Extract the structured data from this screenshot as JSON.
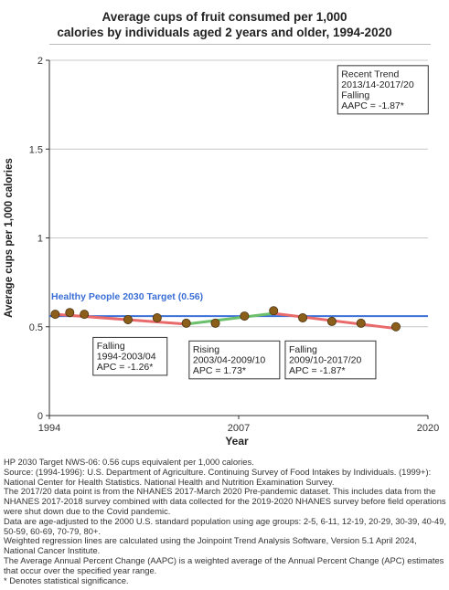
{
  "chart_data": {
    "type": "line",
    "title": "Average cups of fruit consumed per 1,000 calories by individuals aged 2 years and older, 1994-2020",
    "title_lines": [
      "Average cups of fruit consumed per 1,000",
      "calories by individuals aged 2 years and older, 1994-2020"
    ],
    "xlabel": "Year",
    "ylabel": "Average cups per 1,000 calories",
    "xlim": [
      1994,
      2020
    ],
    "ylim": [
      0,
      2
    ],
    "x_ticks": [
      1994,
      2007,
      2020
    ],
    "y_ticks": [
      0,
      0.5,
      1,
      1.5,
      2
    ],
    "y_tick_labels": [
      "0",
      "0.5",
      "1",
      "1.5",
      "2"
    ],
    "grid": true,
    "target": {
      "label": "Healthy People 2030 Target (0.56)",
      "value": 0.56,
      "color": "#3b6fd6"
    },
    "observed_points": [
      {
        "x": 1994.4,
        "y": 0.57
      },
      {
        "x": 1995.4,
        "y": 0.58
      },
      {
        "x": 1996.4,
        "y": 0.57
      },
      {
        "x": 1999.4,
        "y": 0.54
      },
      {
        "x": 2001.4,
        "y": 0.55
      },
      {
        "x": 2003.4,
        "y": 0.52
      },
      {
        "x": 2005.4,
        "y": 0.52
      },
      {
        "x": 2007.4,
        "y": 0.56
      },
      {
        "x": 2009.4,
        "y": 0.59
      },
      {
        "x": 2011.4,
        "y": 0.55
      },
      {
        "x": 2013.4,
        "y": 0.53
      },
      {
        "x": 2015.4,
        "y": 0.52
      },
      {
        "x": 2017.8,
        "y": 0.5
      }
    ],
    "point_color": "#8b5e1a",
    "trend_segments": [
      {
        "x": [
          1994.4,
          2003.4
        ],
        "y": [
          0.57,
          0.515
        ],
        "color": "#e86a6a",
        "trend": "falling"
      },
      {
        "x": [
          2003.4,
          2009.4
        ],
        "y": [
          0.515,
          0.575
        ],
        "color": "#6cc06c",
        "trend": "rising"
      },
      {
        "x": [
          2009.4,
          2017.8
        ],
        "y": [
          0.575,
          0.49
        ],
        "color": "#e86a6a",
        "trend": "falling"
      }
    ],
    "annotations": [
      {
        "lines": [
          "Falling",
          "1994-2003/04",
          "APC = -1.26*"
        ],
        "anchor_x": 1997.0,
        "anchor_y": 0.44
      },
      {
        "lines": [
          "Rising",
          "2003/04-2009/10",
          "APC =  1.73*"
        ],
        "anchor_x": 2003.6,
        "anchor_y": 0.42
      },
      {
        "lines": [
          "Falling",
          "2009/10-2017/20",
          "APC = -1.87*"
        ],
        "anchor_x": 2010.2,
        "anchor_y": 0.42
      },
      {
        "lines": [
          "Recent Trend",
          "2013/14-2017/20",
          "Falling",
          "AAPC = -1.87*"
        ],
        "anchor_x": 2013.8,
        "anchor_y": 1.97
      }
    ]
  },
  "footnotes": [
    "HP 2030 Target NWS-06: 0.56 cups equivalent per 1,000 calories.",
    "Source: (1994-1996): U.S. Department of Agriculture. Continuing Survey of Food Intakes by Individuals. (1999+): National Center for Health Statistics. National Health and Nutrition Examination Survey.",
    "The 2017/20 data point is from the NHANES 2017-March 2020 Pre-pandemic dataset. This includes data from the NHANES 2017-2018 survey combined with data collected for the 2019-2020 NHANES survey before field operations were shut down due to the Covid pandemic.",
    "Data are age-adjusted to the 2000 U.S. standard population using age groups: 2-5, 6-11, 12-19, 20-29, 30-39, 40-49, 50-59, 60-69, 70-79, 80+.",
    "Weighted regression lines are calculated using the Joinpoint Trend Analysis Software, Version 5.1 April 2024, National Cancer Institute.",
    "The Average Annual Percent Change (AAPC) is a weighted average of the Annual Percent Change (APC) estimates that occur over the specified year range.",
    "* Denotes statistical significance."
  ]
}
